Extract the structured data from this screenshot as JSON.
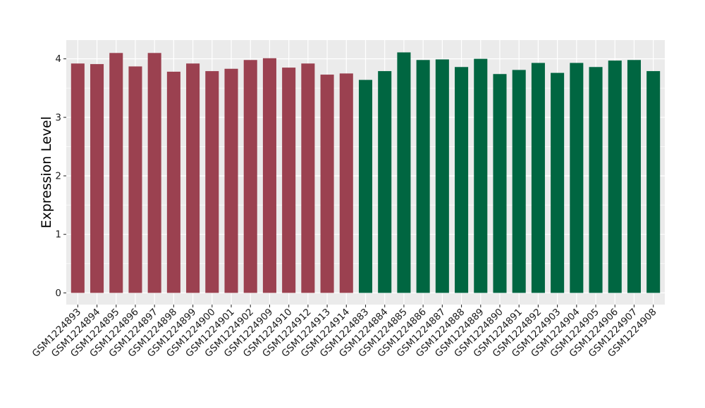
{
  "chart_data": {
    "type": "bar",
    "title": "",
    "xlabel": "",
    "ylabel": "Expression Level",
    "ylim": [
      -0.2,
      4.32
    ],
    "yticks": [
      0,
      1,
      2,
      3,
      4
    ],
    "grid": true,
    "legend": "none",
    "panel_background": "#ebebeb",
    "grid_color": "#ffffff",
    "categories": [
      "GSM1224893",
      "GSM1224894",
      "GSM1224895",
      "GSM1224896",
      "GSM1224897",
      "GSM1224898",
      "GSM1224899",
      "GSM1224900",
      "GSM1224901",
      "GSM1224902",
      "GSM1224909",
      "GSM1224910",
      "GSM1224912",
      "GSM1224913",
      "GSM1224914",
      "GSM1224883",
      "GSM1224884",
      "GSM1224885",
      "GSM1224886",
      "GSM1224887",
      "GSM1224888",
      "GSM1224889",
      "GSM1224890",
      "GSM1224891",
      "GSM1224892",
      "GSM1224903",
      "GSM1224904",
      "GSM1224905",
      "GSM1224906",
      "GSM1224907",
      "GSM1224908"
    ],
    "values": [
      3.92,
      3.91,
      4.1,
      3.87,
      4.1,
      3.78,
      3.92,
      3.79,
      3.83,
      3.98,
      4.01,
      3.85,
      3.92,
      3.73,
      3.75,
      3.64,
      3.79,
      4.11,
      3.98,
      3.99,
      3.86,
      4.0,
      3.74,
      3.81,
      3.93,
      3.76,
      3.93,
      3.86,
      3.97,
      3.98,
      3.79
    ],
    "bar_colors": [
      "#9b4150",
      "#9b4150",
      "#9b4150",
      "#9b4150",
      "#9b4150",
      "#9b4150",
      "#9b4150",
      "#9b4150",
      "#9b4150",
      "#9b4150",
      "#9b4150",
      "#9b4150",
      "#9b4150",
      "#9b4150",
      "#9b4150",
      "#006641",
      "#006641",
      "#006641",
      "#006641",
      "#006641",
      "#006641",
      "#006641",
      "#006641",
      "#006641",
      "#006641",
      "#006641",
      "#006641",
      "#006641",
      "#006641",
      "#006641",
      "#006641"
    ]
  }
}
